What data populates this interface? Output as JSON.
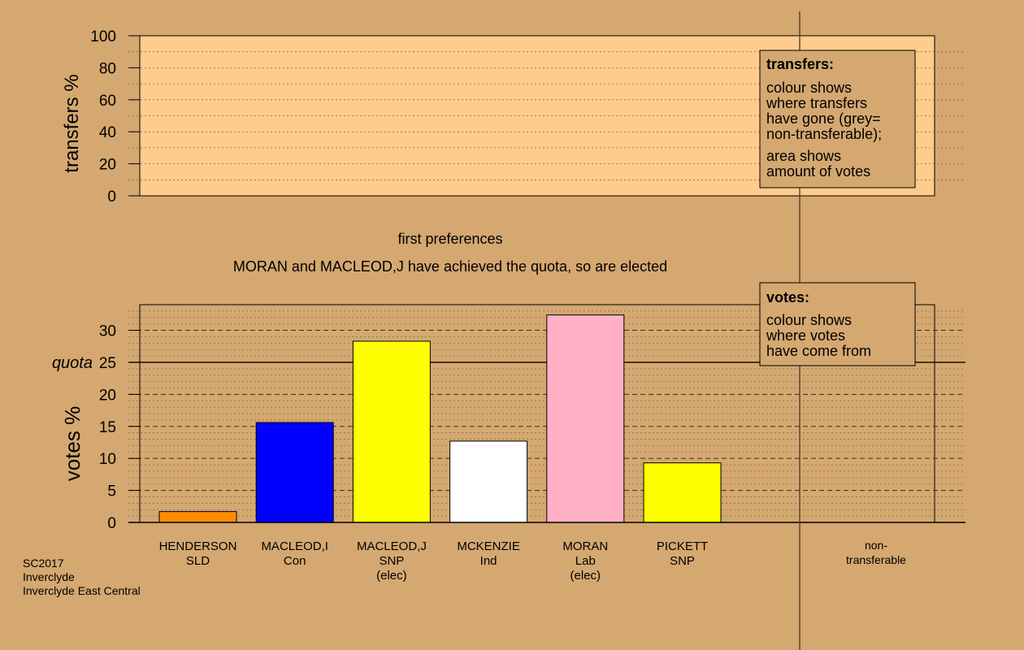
{
  "chart_data": [
    {
      "type": "area",
      "ylabel": "transfers %",
      "ylim": [
        0,
        100
      ],
      "yticks": [
        "100",
        "80",
        "60",
        "40",
        "20",
        "0"
      ],
      "legend": {
        "title": "transfers:",
        "lines": [
          "colour shows",
          "where transfers",
          "have gone (grey=",
          "non-transferable);"
        ],
        "lines2": [
          "area shows",
          "amount of votes"
        ]
      },
      "series": []
    },
    {
      "type": "bar",
      "ylabel": "votes %",
      "ylim": [
        0,
        34
      ],
      "yticks": [
        "30",
        "25",
        "20",
        "15",
        "10",
        "5",
        "0"
      ],
      "quota": 25,
      "quota_label": "quota",
      "categories": [
        {
          "name": "HENDERSON",
          "party": "SLD",
          "note": ""
        },
        {
          "name": "MACLEOD,I",
          "party": "Con",
          "note": ""
        },
        {
          "name": "MACLEOD,J",
          "party": "SNP",
          "note": "(elec)"
        },
        {
          "name": "MCKENZIE",
          "party": "Ind",
          "note": ""
        },
        {
          "name": "MORAN",
          "party": "Lab",
          "note": "(elec)"
        },
        {
          "name": "PICKETT",
          "party": "SNP",
          "note": ""
        }
      ],
      "values": [
        1.7,
        15.6,
        28.3,
        12.7,
        32.4,
        9.3
      ],
      "colors": [
        "#ff8c00",
        "#0000ff",
        "#ffff00",
        "#ffffff",
        "#ffb0c4",
        "#ffff00"
      ],
      "extra_category": {
        "line1": "non-",
        "line2": "transferable"
      },
      "legend": {
        "title": "votes:",
        "lines": [
          "colour shows",
          "where votes",
          "have come from"
        ]
      }
    }
  ],
  "stage_title": "first preferences",
  "stage_message": "MORAN and MACLEOD,J have achieved the quota, so are elected",
  "footer": [
    "SC2017",
    "Inverclyde",
    "Inverclyde East Central"
  ]
}
